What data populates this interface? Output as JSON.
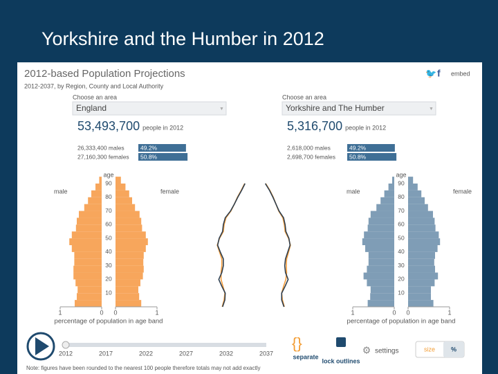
{
  "slide_title": "Yorkshire and the Humber in 2012",
  "app": {
    "title": "2012-based Population Projections",
    "subtitle": "2012-2037, by Region, County and Local Authority",
    "embed": "embed",
    "areas": [
      {
        "prompt": "Choose an area",
        "name": "England",
        "total": "53,493,700",
        "total_note": "people in 2012",
        "males": "26,333,400 males",
        "females": "27,160,300 females"
      },
      {
        "prompt": "Choose an area",
        "name": "Yorkshire and The Humber",
        "total": "5,316,700",
        "total_note": "people in 2012",
        "males": "2,618,000 males",
        "females": "2,698,700 females"
      }
    ]
  },
  "chart_data": [
    {
      "type": "pyramid",
      "y_label": "age",
      "x_label": "percentage of population in age band",
      "x": [
        0,
        5,
        10,
        15,
        20,
        25,
        30,
        35,
        40,
        45,
        50,
        55,
        60,
        65,
        70,
        75,
        80,
        85,
        90
      ],
      "series": [
        {
          "name": "male",
          "color": "#f7a65c",
          "values": [
            0.65,
            0.6,
            0.58,
            0.63,
            0.68,
            0.68,
            0.66,
            0.66,
            0.72,
            0.78,
            0.72,
            0.62,
            0.6,
            0.55,
            0.42,
            0.33,
            0.25,
            0.15,
            0.06
          ]
        },
        {
          "name": "female",
          "color": "#f7a65c",
          "values": [
            0.62,
            0.57,
            0.55,
            0.6,
            0.66,
            0.68,
            0.67,
            0.68,
            0.73,
            0.78,
            0.73,
            0.64,
            0.62,
            0.58,
            0.47,
            0.4,
            0.33,
            0.24,
            0.13
          ]
        }
      ],
      "shares": {
        "values": [
          49.2,
          50.8
        ],
        "value_labels": [
          "49.2%",
          "50.8%"
        ],
        "color": "#3f6f96"
      },
      "xlim": [
        0,
        1
      ],
      "xticks": [
        0,
        1
      ],
      "ylim": [
        0,
        90
      ],
      "yticks": [
        10,
        20,
        30,
        40,
        50,
        60,
        70,
        80,
        90
      ]
    },
    {
      "type": "pyramid",
      "y_label": "age",
      "x_label": "percentage of population in age band",
      "x": [
        0,
        5,
        10,
        15,
        20,
        25,
        30,
        35,
        40,
        45,
        50,
        55,
        60,
        65,
        70,
        75,
        80,
        85,
        90
      ],
      "series": [
        {
          "name": "male",
          "color": "#7f9db6",
          "values": [
            0.64,
            0.58,
            0.57,
            0.66,
            0.74,
            0.66,
            0.62,
            0.62,
            0.7,
            0.77,
            0.73,
            0.64,
            0.62,
            0.57,
            0.43,
            0.33,
            0.24,
            0.14,
            0.05
          ]
        },
        {
          "name": "female",
          "color": "#7f9db6",
          "values": [
            0.61,
            0.55,
            0.55,
            0.64,
            0.72,
            0.65,
            0.63,
            0.65,
            0.71,
            0.77,
            0.74,
            0.66,
            0.64,
            0.6,
            0.48,
            0.4,
            0.32,
            0.23,
            0.12
          ]
        }
      ],
      "shares": {
        "values": [
          49.2,
          50.8
        ],
        "value_labels": [
          "49.2%",
          "50.8%"
        ],
        "color": "#3f6f96"
      },
      "xlim": [
        0,
        1
      ],
      "xticks": [
        0,
        1
      ],
      "ylim": [
        0,
        90
      ],
      "yticks": [
        10,
        20,
        30,
        40,
        50,
        60,
        70,
        80,
        90
      ]
    }
  ],
  "timeline": {
    "years": [
      2012,
      2017,
      2022,
      2027,
      2032,
      2037
    ]
  },
  "controls": {
    "separate": "separate",
    "lock": "lock outlines",
    "settings": "settings",
    "size": "size",
    "percent": "%"
  },
  "note": "Note: figures have been rounded to the nearest 100 people therefore totals may not add exactly"
}
